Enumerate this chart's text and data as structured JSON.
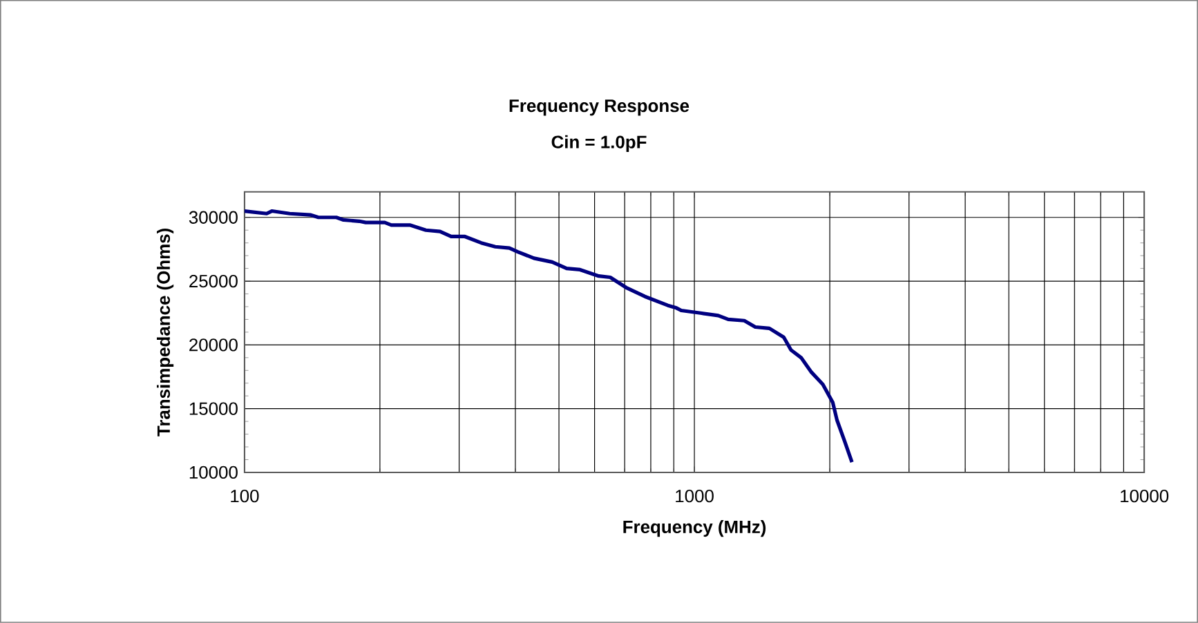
{
  "chart_data": {
    "type": "line",
    "title": "Frequency Response",
    "subtitle": "Cin = 1.0pF",
    "xlabel": "Frequency (MHz)",
    "ylabel": "Transimpedance (Ohms)",
    "log": "x",
    "grid": true,
    "marker": "none",
    "line_style": "solid",
    "xlim": [
      100,
      10000
    ],
    "xticks": [
      100,
      1000,
      10000
    ],
    "ylim": [
      10000,
      32000
    ],
    "yticks": [
      10000,
      15000,
      20000,
      25000,
      30000
    ],
    "x": [
      100,
      112,
      115,
      126,
      140,
      146,
      160,
      166,
      180,
      186,
      205,
      212,
      233,
      253,
      272,
      288,
      309,
      336,
      361,
      388,
      405,
      440,
      483,
      520,
      557,
      613,
      650,
      705,
      776,
      873,
      912,
      935,
      1032,
      1130,
      1189,
      1291,
      1366,
      1468,
      1580,
      1640,
      1727,
      1816,
      1930,
      2030,
      2075,
      2160,
      2240
    ],
    "series": [
      {
        "color": "#000080",
        "values": [
          30500,
          30300,
          30500,
          30300,
          30200,
          30000,
          30000,
          29800,
          29700,
          29600,
          29600,
          29400,
          29400,
          29000,
          28900,
          28500,
          28500,
          28000,
          27700,
          27600,
          27300,
          26800,
          26500,
          26000,
          25900,
          25400,
          25300,
          24500,
          23800,
          23100,
          22900,
          22700,
          22500,
          22300,
          22000,
          21900,
          21400,
          21300,
          20600,
          19600,
          19000,
          17900,
          16900,
          15500,
          14100,
          12400,
          10800
        ]
      }
    ]
  }
}
